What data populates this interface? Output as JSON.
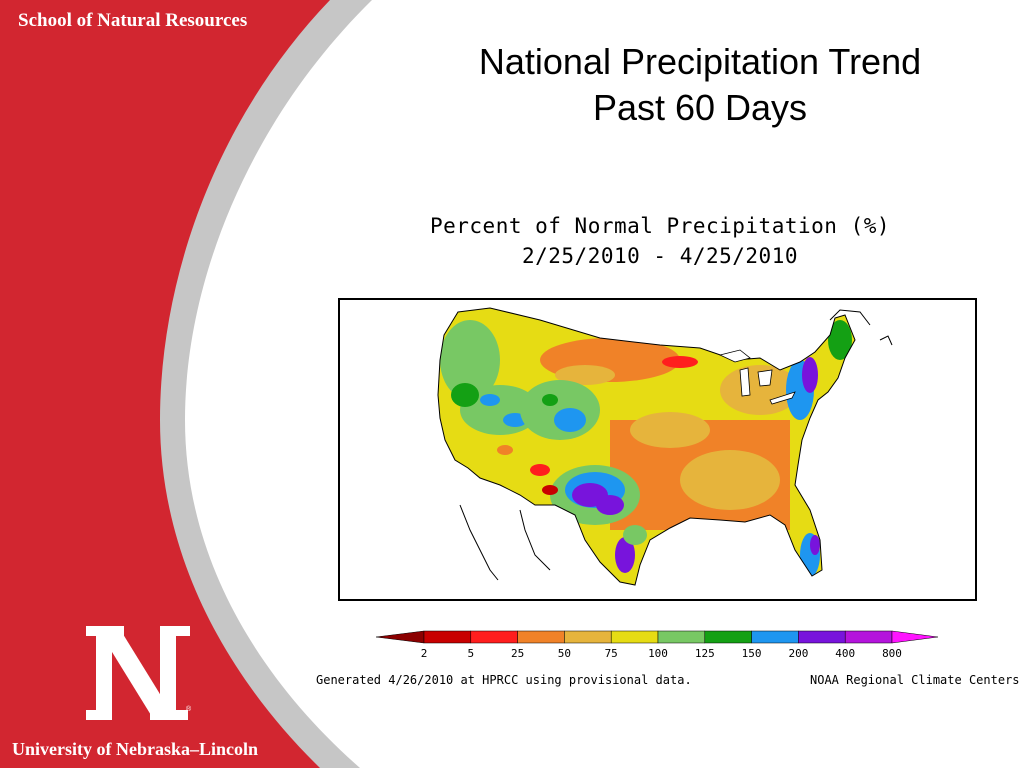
{
  "sidebar": {
    "school_name": "School of Natural Resources",
    "university_name": "University of Nebraska–Lincoln",
    "logo_letter": "N",
    "registered_mark": "®",
    "colors": {
      "brand_red": "#d22630",
      "stripe_gray": "#c6c6c6",
      "text": "#ffffff"
    }
  },
  "slide": {
    "title_line1": "National Precipitation Trend",
    "title_line2": "Past 60 Days"
  },
  "map": {
    "title_line1": "Percent of Normal Precipitation (%)",
    "title_line2": "2/25/2010 - 4/25/2010",
    "footer_left": "Generated 4/26/2010 at HPRCC using provisional data.",
    "footer_right": "NOAA Regional Climate Centers",
    "legend": {
      "labels": [
        "2",
        "5",
        "25",
        "50",
        "75",
        "100",
        "125",
        "150",
        "200",
        "400",
        "800"
      ],
      "colors": [
        "#8b0000",
        "#c80000",
        "#ff1e1e",
        "#f08228",
        "#e6b43c",
        "#e6dc14",
        "#78c864",
        "#14a014",
        "#1e96f0",
        "#7814dc",
        "#b414dc",
        "#ff14ff"
      ]
    }
  }
}
